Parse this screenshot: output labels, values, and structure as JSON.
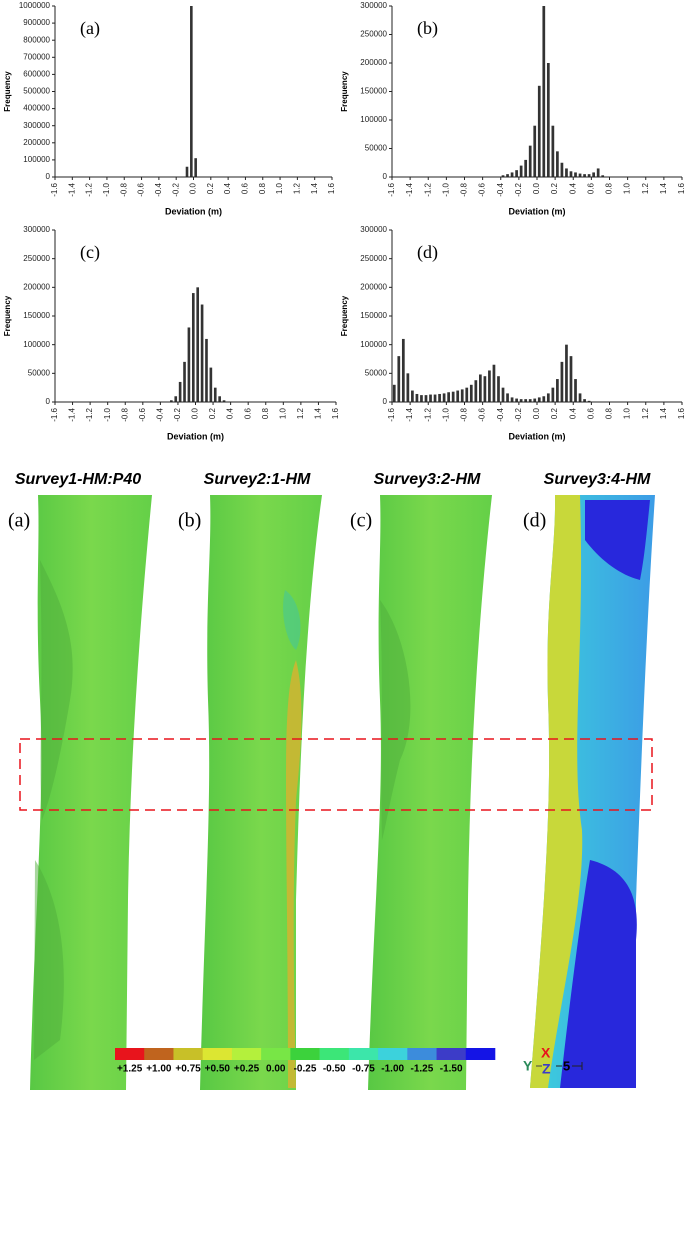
{
  "chart_data": [
    {
      "type": "histogram",
      "annotation": "(a)",
      "xlabel": "Deviation (m)",
      "ylabel": "Frequency",
      "color": "#333333",
      "bins": [
        -1.6,
        -1.55,
        -1.5,
        -1.45,
        -1.4,
        -1.35,
        -1.3,
        -1.25,
        -1.2,
        -1.15,
        -1.1,
        -1.05,
        -1,
        -0.95,
        -0.9,
        -0.85,
        -0.8,
        -0.75,
        -0.7,
        -0.65,
        -0.6,
        -0.55,
        -0.5,
        -0.45,
        -0.4,
        -0.35,
        -0.3,
        -0.25,
        -0.2,
        -0.15,
        -0.1,
        -0.05,
        0,
        0.05,
        0.1,
        0.15,
        0.2,
        0.25,
        0.3,
        0.35,
        0.4,
        0.45,
        0.5,
        0.55,
        0.6,
        0.65,
        0.7,
        0.75,
        0.8,
        0.85,
        0.9,
        0.95,
        1,
        1.05,
        1.1,
        1.15,
        1.2,
        1.25,
        1.3,
        1.35,
        1.4,
        1.45,
        1.5,
        1.55,
        1.6
      ],
      "values": [
        0,
        0,
        0,
        0,
        0,
        0,
        0,
        0,
        0,
        0,
        0,
        0,
        0,
        0,
        0,
        0,
        0,
        0,
        0,
        0,
        0,
        0,
        0,
        0,
        0,
        0,
        0,
        0,
        0,
        0,
        60000,
        1000000,
        110000,
        0,
        0,
        0,
        0,
        0,
        0,
        0,
        0,
        0,
        0,
        0,
        0,
        0,
        0,
        0,
        0,
        0,
        0,
        0,
        0,
        0,
        0,
        0,
        0,
        0,
        0,
        0,
        0,
        0,
        0,
        0
      ],
      "xlim": [
        -1.6,
        1.6
      ],
      "ylim": [
        0,
        1000000
      ],
      "xticks": [
        -1.6,
        -1.4,
        -1.2,
        {
          "value": -1,
          "label": "-1.0"
        },
        -0.8,
        -0.6,
        -0.4,
        -0.2,
        {
          "value": 0,
          "label": "0.0"
        },
        0.2,
        0.4,
        0.6,
        0.8,
        {
          "value": 1,
          "label": "1.0"
        },
        1.2,
        1.4,
        1.6
      ],
      "yticks": [
        0,
        100000,
        200000,
        300000,
        400000,
        500000,
        600000,
        700000,
        800000,
        900000,
        1000000
      ]
    },
    {
      "type": "histogram",
      "annotation": "(b)",
      "xlabel": "Deviation (m)",
      "ylabel": "Frequency",
      "color": "#333333",
      "bins": [
        -1.6,
        -1.55,
        -1.5,
        -1.45,
        -1.4,
        -1.35,
        -1.3,
        -1.25,
        -1.2,
        -1.15,
        -1.1,
        -1.05,
        -1,
        -0.95,
        -0.9,
        -0.85,
        -0.8,
        -0.75,
        -0.7,
        -0.65,
        -0.6,
        -0.55,
        -0.5,
        -0.45,
        -0.4,
        -0.35,
        -0.3,
        -0.25,
        -0.2,
        -0.15,
        -0.1,
        -0.05,
        0,
        0.05,
        0.1,
        0.15,
        0.2,
        0.25,
        0.3,
        0.35,
        0.4,
        0.45,
        0.5,
        0.55,
        0.6,
        0.65,
        0.7,
        0.75,
        0.8,
        0.85,
        0.9,
        0.95,
        1,
        1.05,
        1.1,
        1.15,
        1.2,
        1.25,
        1.3,
        1.35,
        1.4,
        1.45,
        1.5,
        1.55,
        1.6
      ],
      "values": [
        0,
        0,
        0,
        0,
        0,
        0,
        0,
        0,
        0,
        0,
        0,
        0,
        0,
        0,
        0,
        0,
        0,
        0,
        0,
        0,
        0,
        0,
        0,
        0,
        3000,
        5000,
        8000,
        12000,
        20000,
        30000,
        55000,
        90000,
        160000,
        300000,
        200000,
        90000,
        45000,
        25000,
        15000,
        10000,
        8000,
        6000,
        5000,
        5000,
        8000,
        15000,
        3000,
        0,
        0,
        0,
        0,
        0,
        0,
        0,
        0,
        0,
        0,
        0,
        0,
        0,
        0,
        0,
        0,
        0
      ],
      "xlim": [
        -1.6,
        1.6
      ],
      "ylim": [
        0,
        300000
      ],
      "xticks": [
        -1.6,
        -1.4,
        -1.2,
        {
          "value": -1,
          "label": "-1.0"
        },
        -0.8,
        -0.6,
        -0.4,
        -0.2,
        {
          "value": 0,
          "label": "0.0"
        },
        0.2,
        0.4,
        0.6,
        0.8,
        {
          "value": 1,
          "label": "1.0"
        },
        1.2,
        1.4,
        1.6
      ],
      "yticks": [
        0,
        50000,
        100000,
        150000,
        200000,
        250000,
        300000
      ]
    },
    {
      "type": "histogram",
      "annotation": "(c)",
      "xlabel": "Deviation (m)",
      "ylabel": "Frequency",
      "color": "#333333",
      "bins": [
        -1.6,
        -1.55,
        -1.5,
        -1.45,
        -1.4,
        -1.35,
        -1.3,
        -1.25,
        -1.2,
        -1.15,
        -1.1,
        -1.05,
        -1,
        -0.95,
        -0.9,
        -0.85,
        -0.8,
        -0.75,
        -0.7,
        -0.65,
        -0.6,
        -0.55,
        -0.5,
        -0.45,
        -0.4,
        -0.35,
        -0.3,
        -0.25,
        -0.2,
        -0.15,
        -0.1,
        -0.05,
        0,
        0.05,
        0.1,
        0.15,
        0.2,
        0.25,
        0.3,
        0.35,
        0.4,
        0.45,
        0.5,
        0.55,
        0.6,
        0.65,
        0.7,
        0.75,
        0.8,
        0.85,
        0.9,
        0.95,
        1,
        1.05,
        1.1,
        1.15,
        1.2,
        1.25,
        1.3,
        1.35,
        1.4,
        1.45,
        1.5,
        1.55,
        1.6
      ],
      "values": [
        0,
        0,
        0,
        0,
        0,
        0,
        0,
        0,
        0,
        0,
        0,
        0,
        0,
        0,
        0,
        0,
        0,
        0,
        0,
        0,
        0,
        0,
        0,
        0,
        0,
        0,
        3000,
        10000,
        35000,
        70000,
        130000,
        190000,
        200000,
        170000,
        110000,
        60000,
        25000,
        10000,
        3000,
        0,
        0,
        0,
        0,
        0,
        0,
        0,
        0,
        0,
        0,
        0,
        0,
        0,
        0,
        0,
        0,
        0,
        0,
        0,
        0,
        0,
        0,
        0,
        0,
        0
      ],
      "xlim": [
        -1.6,
        1.6
      ],
      "ylim": [
        0,
        300000
      ],
      "xticks": [
        -1.6,
        -1.4,
        -1.2,
        {
          "value": -1,
          "label": "-1.0"
        },
        -0.8,
        -0.6,
        -0.4,
        -0.2,
        {
          "value": 0,
          "label": "0.0"
        },
        0.2,
        0.4,
        0.6,
        0.8,
        {
          "value": 1,
          "label": "1.0"
        },
        1.2,
        1.4,
        1.6
      ],
      "yticks": [
        0,
        50000,
        100000,
        150000,
        200000,
        250000,
        300000
      ]
    },
    {
      "type": "histogram",
      "annotation": "(d)",
      "xlabel": "Deviation (m)",
      "ylabel": "Frequency",
      "color": "#333333",
      "bins": [
        -1.6,
        -1.55,
        -1.5,
        -1.45,
        -1.4,
        -1.35,
        -1.3,
        -1.25,
        -1.2,
        -1.15,
        -1.1,
        -1.05,
        -1,
        -0.95,
        -0.9,
        -0.85,
        -0.8,
        -0.75,
        -0.7,
        -0.65,
        -0.6,
        -0.55,
        -0.5,
        -0.45,
        -0.4,
        -0.35,
        -0.3,
        -0.25,
        -0.2,
        -0.15,
        -0.1,
        -0.05,
        0,
        0.05,
        0.1,
        0.15,
        0.2,
        0.25,
        0.3,
        0.35,
        0.4,
        0.45,
        0.5,
        0.55,
        0.6,
        0.65,
        0.7,
        0.75,
        0.8,
        0.85,
        0.9,
        0.95,
        1,
        1.05,
        1.1,
        1.15,
        1.2,
        1.25,
        1.3,
        1.35,
        1.4,
        1.45,
        1.5,
        1.55,
        1.6
      ],
      "values": [
        30000,
        80000,
        110000,
        50000,
        20000,
        14000,
        12000,
        12000,
        13000,
        13000,
        14000,
        15000,
        17000,
        18000,
        20000,
        22000,
        25000,
        30000,
        38000,
        48000,
        45000,
        55000,
        65000,
        45000,
        25000,
        15000,
        8000,
        6000,
        5000,
        5000,
        5000,
        6000,
        8000,
        10000,
        15000,
        25000,
        40000,
        70000,
        100000,
        80000,
        40000,
        15000,
        5000,
        2000,
        0,
        0,
        0,
        0,
        0,
        0,
        0,
        0,
        0,
        0,
        0,
        0,
        0,
        0,
        0,
        0,
        0,
        0,
        0,
        0
      ],
      "xlim": [
        -1.6,
        1.6
      ],
      "ylim": [
        0,
        300000
      ],
      "xticks": [
        -1.6,
        -1.4,
        -1.2,
        {
          "value": -1,
          "label": "-1.0"
        },
        -0.8,
        -0.6,
        -0.4,
        -0.2,
        {
          "value": 0,
          "label": "0.0"
        },
        0.2,
        0.4,
        0.6,
        0.8,
        {
          "value": 1,
          "label": "1.0"
        },
        1.2,
        1.4,
        1.6
      ],
      "yticks": [
        0,
        50000,
        100000,
        150000,
        200000,
        250000,
        300000
      ]
    }
  ],
  "maps": [
    {
      "title": "Survey1-HM:P40",
      "label": "(a)"
    },
    {
      "title": "Survey2:1-HM",
      "label": "(b)"
    },
    {
      "title": "Survey3:2-HM",
      "label": "(c)"
    },
    {
      "title": "Survey3:4-HM",
      "label": "(d)"
    }
  ],
  "legend": {
    "colors": [
      "#e8141c",
      "#c0641e",
      "#c8c028",
      "#dce632",
      "#b4f03c",
      "#78e646",
      "#3cd23c",
      "#3ce678",
      "#3ce6aa",
      "#3cd2dc",
      "#3c8cdc",
      "#3c3cc8",
      "#1414e6"
    ],
    "labels": [
      "+1.25",
      "+1.00",
      "+0.75",
      "+0.50",
      "+0.25",
      "0.00",
      "-0.25",
      "-0.50",
      "-0.75",
      "-1.00",
      "-1.25",
      "-1.50"
    ]
  },
  "axes_indicator": {
    "x": "X",
    "y": "Y",
    "z": "Z",
    "scale": "5"
  }
}
